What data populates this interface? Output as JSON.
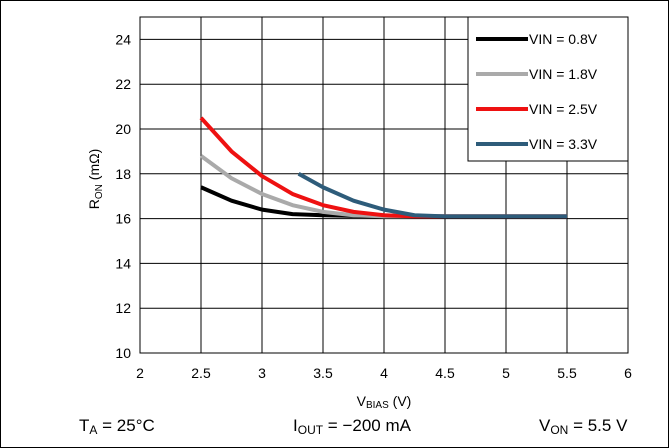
{
  "chart_data": {
    "type": "line",
    "xlabel": {
      "main": "V",
      "sub": "BIAS",
      "unit": " (V)"
    },
    "ylabel": {
      "main": "R",
      "sub": "ON",
      "unit": " (mΩ)"
    },
    "xlim": [
      2,
      6
    ],
    "ylim": [
      10,
      25
    ],
    "xticks": [
      2,
      2.5,
      3,
      3.5,
      4,
      4.5,
      5,
      5.5,
      6
    ],
    "yticks": [
      10,
      12,
      14,
      16,
      18,
      20,
      22,
      24
    ],
    "grid": true,
    "legend_position": "top-right",
    "series": [
      {
        "name": "VIN = 0.8V",
        "color": "#000000",
        "x": [
          2.5,
          2.75,
          3.0,
          3.25,
          3.5,
          3.75,
          4.0,
          4.25,
          4.5,
          5.0,
          5.5
        ],
        "y": [
          17.4,
          16.8,
          16.4,
          16.2,
          16.15,
          16.12,
          16.1,
          16.1,
          16.1,
          16.1,
          16.1
        ]
      },
      {
        "name": "VIN = 1.8V",
        "color": "#aaaaaa",
        "x": [
          2.5,
          2.75,
          3.0,
          3.25,
          3.5,
          3.75,
          4.0,
          4.25,
          4.5,
          5.0,
          5.5
        ],
        "y": [
          18.8,
          17.8,
          17.1,
          16.6,
          16.3,
          16.15,
          16.1,
          16.1,
          16.1,
          16.1,
          16.1
        ]
      },
      {
        "name": "VIN = 2.5V",
        "color": "#ee1111",
        "x": [
          2.5,
          2.75,
          3.0,
          3.25,
          3.5,
          3.75,
          4.0,
          4.25,
          4.5,
          5.0,
          5.5
        ],
        "y": [
          20.5,
          19.0,
          17.9,
          17.1,
          16.6,
          16.3,
          16.15,
          16.1,
          16.1,
          16.1,
          16.1
        ]
      },
      {
        "name": "VIN = 3.3V",
        "color": "#2e5c7a",
        "x": [
          3.3,
          3.5,
          3.75,
          4.0,
          4.25,
          4.5,
          5.0,
          5.5
        ],
        "y": [
          18.0,
          17.4,
          16.8,
          16.4,
          16.15,
          16.1,
          16.1,
          16.1
        ]
      }
    ]
  },
  "conditions": {
    "ta": {
      "main": "T",
      "sub": "A",
      "rest": " = 25°C"
    },
    "iout": {
      "main": "I",
      "sub": "OUT",
      "rest": " = −200 mA"
    },
    "von": {
      "main": "V",
      "sub": "ON",
      "rest": " = 5.5 V"
    }
  }
}
